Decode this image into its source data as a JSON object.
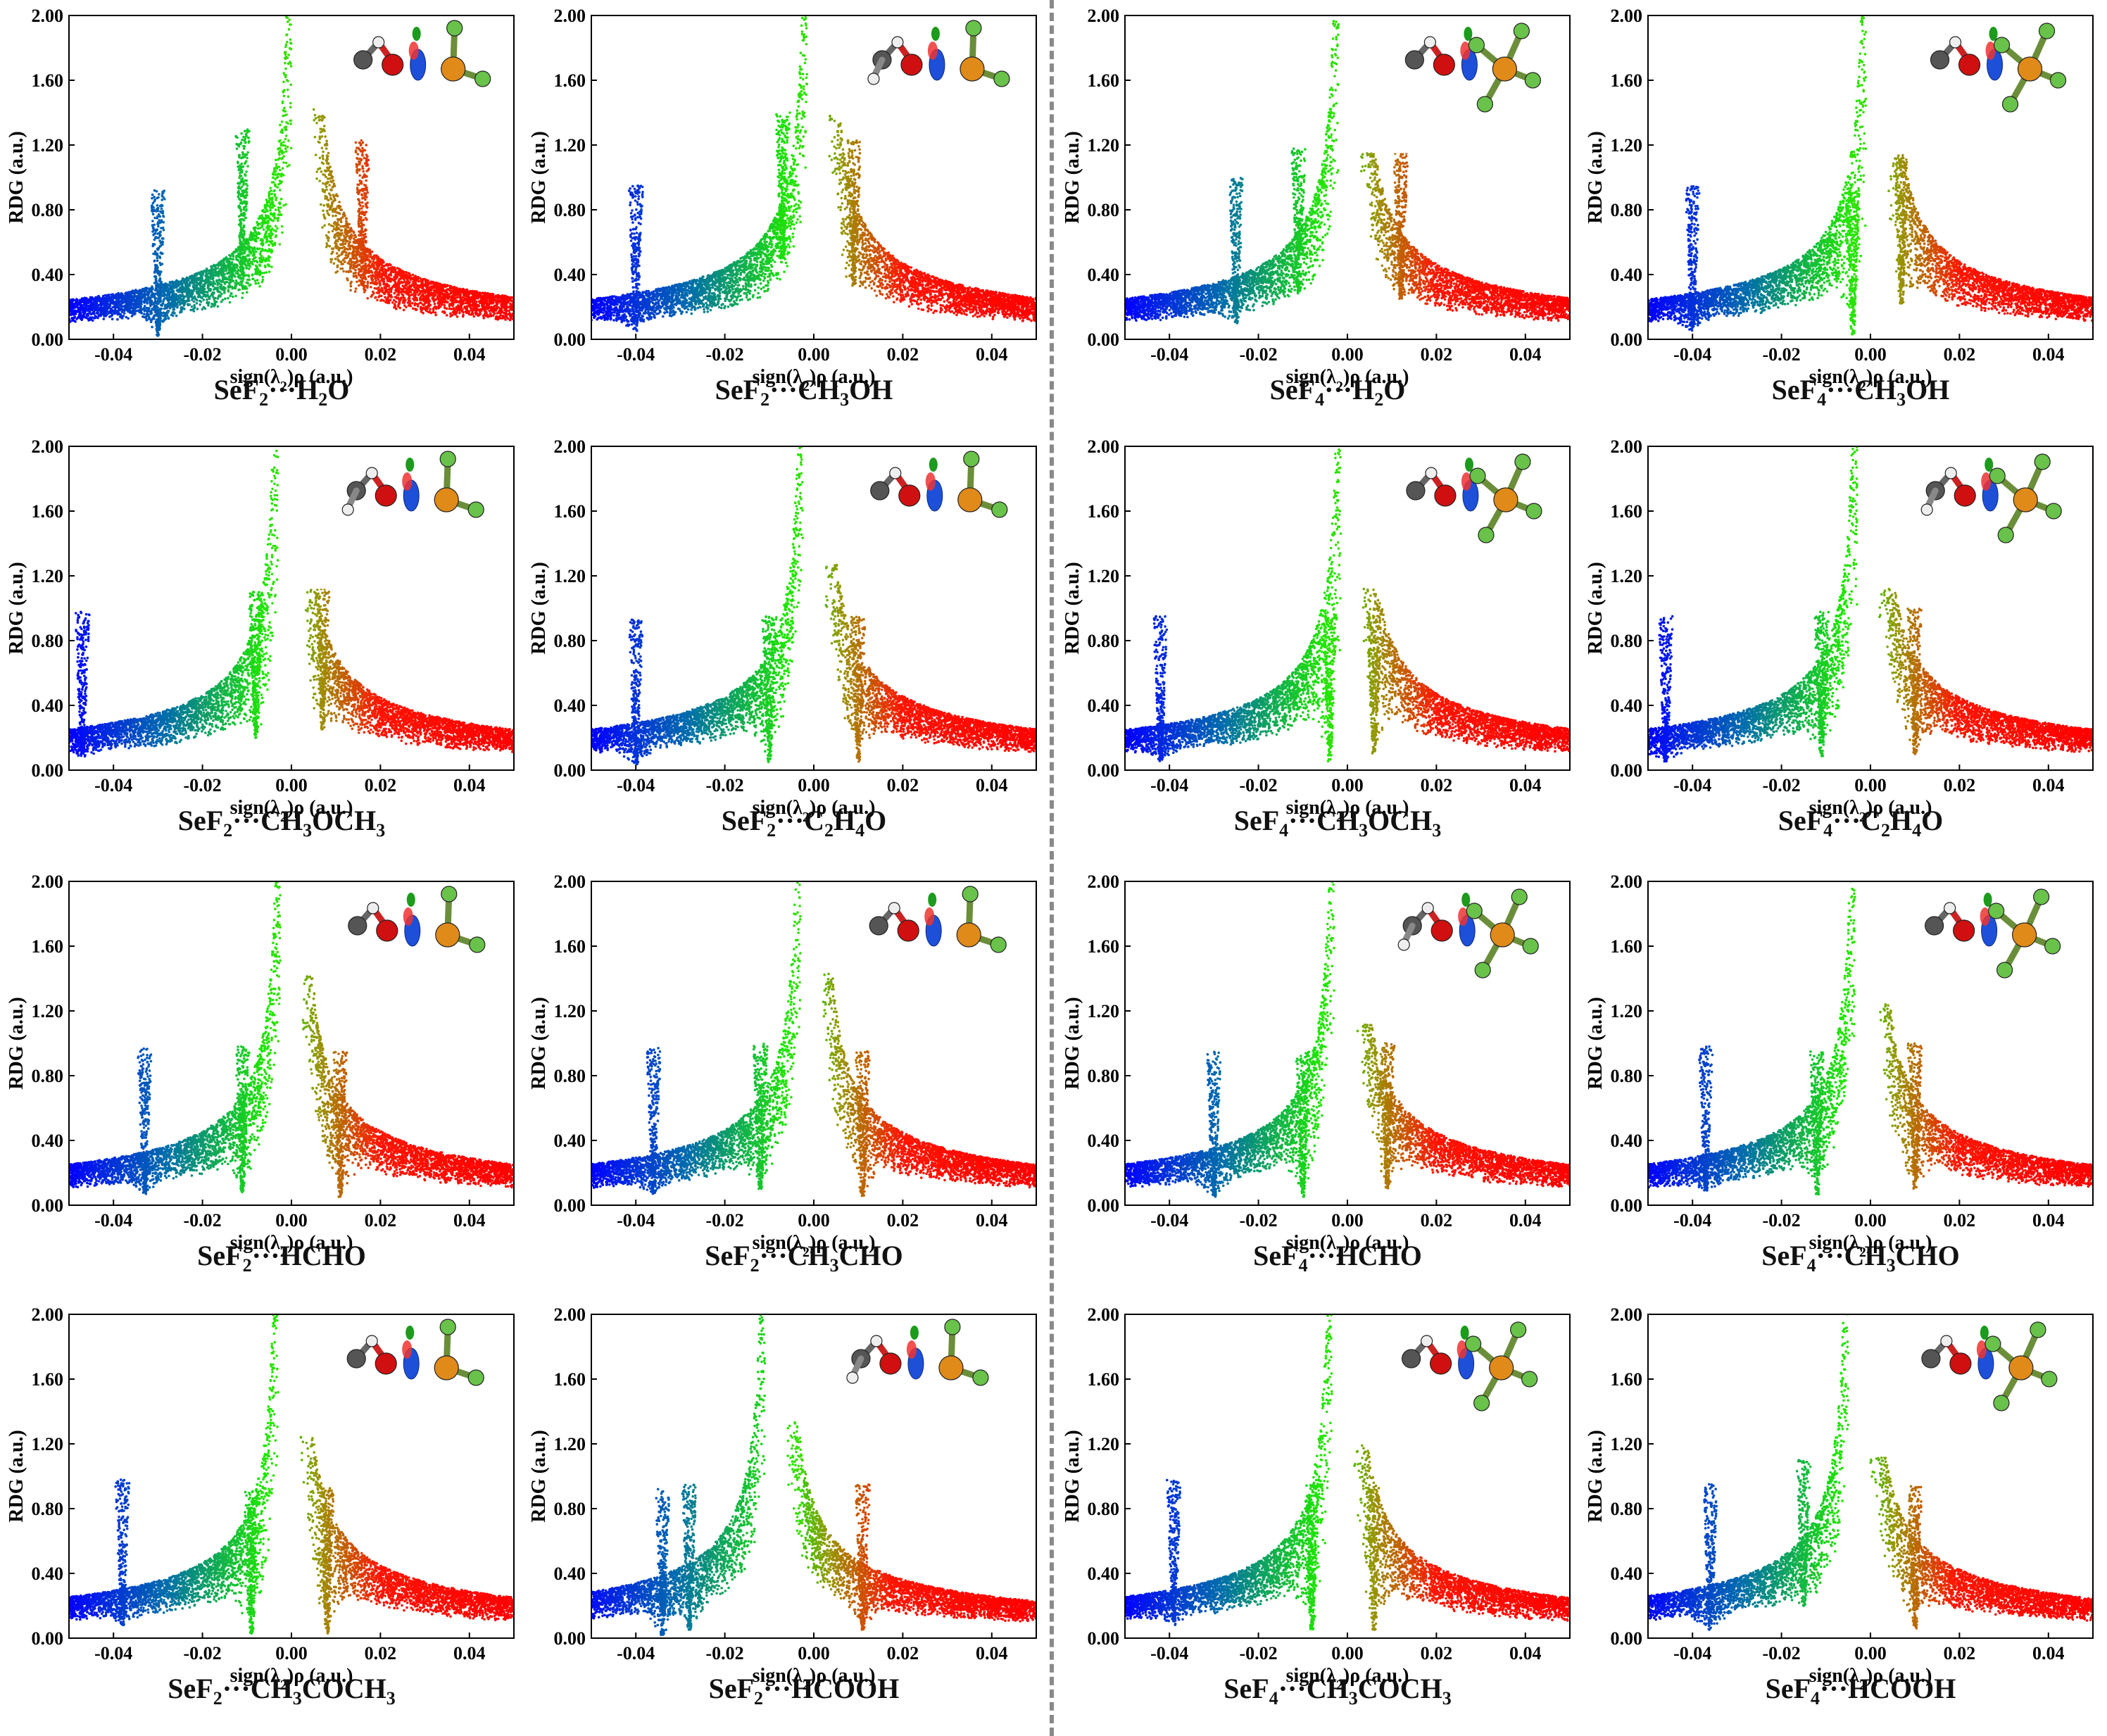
{
  "separator": "dashed-vertical",
  "palette": {
    "attractive": "#0000ff",
    "weak": "#00dd00",
    "repulsive": "#ff0000",
    "mid": "#b08000"
  },
  "chart_data": [
    {
      "type": "scatter",
      "group": "SeF2",
      "caption": [
        "SeF",
        "2",
        "···H",
        "2",
        "O"
      ],
      "xlabel": [
        "sign(λ",
        "2",
        ")ρ (a.u.)"
      ],
      "ylabel": "RDG (a.u.)",
      "xlim": [
        -0.05,
        0.05
      ],
      "ylim": [
        0,
        2.0
      ],
      "xticks": [
        "-0.04",
        "-0.02",
        "0.00",
        "0.02",
        "0.04"
      ],
      "yticks": [
        "0.00",
        "0.40",
        "0.80",
        "1.20",
        "1.60",
        "2.00"
      ],
      "spikes": [
        {
          "x": -0.03,
          "min": 0.02
        },
        {
          "x": -0.011,
          "min": 0.4
        },
        {
          "x": 0.016,
          "min": 0.33
        }
      ],
      "inset": {
        "rdg_cut": 1.42,
        "mol": "SeF2·H2O"
      }
    },
    {
      "type": "scatter",
      "group": "SeF2",
      "caption": [
        "SeF",
        "2",
        "···CH",
        "3",
        "OH"
      ],
      "xlabel": [
        "sign(λ",
        "2",
        ")ρ (a.u.)"
      ],
      "ylabel": "RDG (a.u.)",
      "xlim": [
        -0.05,
        0.05
      ],
      "ylim": [
        0,
        2.0
      ],
      "xticks": [
        "-0.04",
        "-0.02",
        "0.00",
        "0.02",
        "0.04"
      ],
      "yticks": [
        "0.00",
        "0.40",
        "0.80",
        "1.20",
        "1.60",
        "2.00"
      ],
      "spikes": [
        {
          "x": -0.04,
          "min": 0.05
        },
        {
          "x": -0.007,
          "min": 0.5
        },
        {
          "x": 0.009,
          "min": 0.33
        }
      ],
      "inset": {
        "rdg_cut": 1.38,
        "mol": "SeF2·CH3OH"
      }
    },
    {
      "type": "scatter",
      "group": "SeF4",
      "caption": [
        "SeF",
        "4",
        "···H",
        "2",
        "O"
      ],
      "xlabel": [
        "sign(λ",
        "2",
        ")ρ (a.u.)"
      ],
      "ylabel": "RDG (a.u.)",
      "xlim": [
        -0.05,
        0.05
      ],
      "ylim": [
        0,
        2.0
      ],
      "xticks": [
        "-0.04",
        "-0.02",
        "0.00",
        "0.02",
        "0.04"
      ],
      "yticks": [
        "0.00",
        "0.40",
        "0.80",
        "1.20",
        "1.60",
        "2.00"
      ],
      "spikes": [
        {
          "x": -0.025,
          "min": 0.1
        },
        {
          "x": -0.011,
          "min": 0.28
        },
        {
          "x": 0.012,
          "min": 0.25
        }
      ],
      "inset": {
        "rdg_cut": 1.15,
        "mol": "SeF4·H2O"
      }
    },
    {
      "type": "scatter",
      "group": "SeF4",
      "caption": [
        "SeF",
        "4",
        "···CH",
        "3",
        "OH"
      ],
      "xlabel": [
        "sign(λ",
        "2",
        ")ρ (a.u.)"
      ],
      "ylabel": "RDG (a.u.)",
      "xlim": [
        -0.05,
        0.05
      ],
      "ylim": [
        0,
        2.0
      ],
      "xticks": [
        "-0.04",
        "-0.02",
        "0.00",
        "0.02",
        "0.04"
      ],
      "yticks": [
        "0.00",
        "0.40",
        "0.80",
        "1.20",
        "1.60",
        "2.00"
      ],
      "spikes": [
        {
          "x": -0.04,
          "min": 0.05
        },
        {
          "x": -0.004,
          "min": 0.03
        },
        {
          "x": 0.007,
          "min": 0.22
        }
      ],
      "inset": {
        "rdg_cut": 1.15,
        "mol": "SeF4·CH3OH"
      }
    },
    {
      "type": "scatter",
      "group": "SeF2",
      "caption": [
        "SeF",
        "2",
        "···CH",
        "3",
        "OCH",
        "3"
      ],
      "xlabel": [
        "sign(λ",
        "2",
        ")ρ (a.u.)"
      ],
      "ylabel": "RDG (a.u.)",
      "xlim": [
        -0.05,
        0.05
      ],
      "ylim": [
        0,
        2.0
      ],
      "xticks": [
        "-0.04",
        "-0.02",
        "0.00",
        "0.02",
        "0.04"
      ],
      "yticks": [
        "0.00",
        "0.40",
        "0.80",
        "1.20",
        "1.60",
        "2.00"
      ],
      "spikes": [
        {
          "x": -0.047,
          "min": 0.08
        },
        {
          "x": -0.008,
          "min": 0.2
        },
        {
          "x": 0.007,
          "min": 0.25
        }
      ],
      "inset": {
        "rdg_cut": 1.12,
        "mol": "SeF2·CH3OCH3"
      }
    },
    {
      "type": "scatter",
      "group": "SeF2",
      "caption": [
        "SeF",
        "2",
        "···C",
        "2",
        "H",
        "4",
        "O"
      ],
      "xlabel": [
        "sign(λ",
        "2",
        ")ρ (a.u.)"
      ],
      "ylabel": "RDG (a.u.)",
      "xlim": [
        -0.05,
        0.05
      ],
      "ylim": [
        0,
        2.0
      ],
      "xticks": [
        "-0.04",
        "-0.02",
        "0.00",
        "0.02",
        "0.04"
      ],
      "yticks": [
        "0.00",
        "0.40",
        "0.80",
        "1.20",
        "1.60",
        "2.00"
      ],
      "spikes": [
        {
          "x": -0.04,
          "min": 0.03
        },
        {
          "x": -0.01,
          "min": 0.05
        },
        {
          "x": 0.01,
          "min": 0.05
        }
      ],
      "inset": {
        "rdg_cut": 1.28,
        "mol": "SeF2·C2H4O"
      }
    },
    {
      "type": "scatter",
      "group": "SeF4",
      "caption": [
        "SeF",
        "4",
        "···CH",
        "3",
        "OCH",
        "3"
      ],
      "xlabel": [
        "sign(λ",
        "2",
        ")ρ (a.u.)"
      ],
      "ylabel": "RDG (a.u.)",
      "xlim": [
        -0.05,
        0.05
      ],
      "ylim": [
        0,
        2.0
      ],
      "xticks": [
        "-0.04",
        "-0.02",
        "0.00",
        "0.02",
        "0.04"
      ],
      "yticks": [
        "0.00",
        "0.40",
        "0.80",
        "1.20",
        "1.60",
        "2.00"
      ],
      "spikes": [
        {
          "x": -0.042,
          "min": 0.05
        },
        {
          "x": -0.004,
          "min": 0.05
        },
        {
          "x": 0.006,
          "min": 0.1
        }
      ],
      "inset": {
        "rdg_cut": 1.12,
        "mol": "SeF4·CH3OCH3"
      }
    },
    {
      "type": "scatter",
      "group": "SeF4",
      "caption": [
        "SeF",
        "4",
        "···C",
        "2",
        "H",
        "4",
        "O"
      ],
      "xlabel": [
        "sign(λ",
        "2",
        ")ρ (a.u.)"
      ],
      "ylabel": "RDG (a.u.)",
      "xlim": [
        -0.05,
        0.05
      ],
      "ylim": [
        0,
        2.0
      ],
      "xticks": [
        "-0.04",
        "-0.02",
        "0.00",
        "0.02",
        "0.04"
      ],
      "yticks": [
        "0.00",
        "0.40",
        "0.80",
        "1.20",
        "1.60",
        "2.00"
      ],
      "spikes": [
        {
          "x": -0.046,
          "min": 0.05
        },
        {
          "x": -0.011,
          "min": 0.08
        },
        {
          "x": 0.01,
          "min": 0.1
        }
      ],
      "inset": {
        "rdg_cut": 1.12,
        "mol": "SeF4·C2H4O"
      }
    },
    {
      "type": "scatter",
      "group": "SeF2",
      "caption": [
        "SeF",
        "2",
        "···HCHO"
      ],
      "xlabel": [
        "sign(λ",
        "2",
        ")ρ (a.u.)"
      ],
      "ylabel": "RDG (a.u.)",
      "xlim": [
        -0.05,
        0.05
      ],
      "ylim": [
        0,
        2.0
      ],
      "xticks": [
        "-0.04",
        "-0.02",
        "0.00",
        "0.02",
        "0.04"
      ],
      "yticks": [
        "0.00",
        "0.40",
        "0.80",
        "1.20",
        "1.60",
        "2.00"
      ],
      "spikes": [
        {
          "x": -0.033,
          "min": 0.07
        },
        {
          "x": -0.011,
          "min": 0.08
        },
        {
          "x": 0.011,
          "min": 0.05
        }
      ],
      "inset": {
        "rdg_cut": 1.42,
        "mol": "SeF2·HCHO"
      }
    },
    {
      "type": "scatter",
      "group": "SeF2",
      "caption": [
        "SeF",
        "2",
        "···CH",
        "3",
        "CHO"
      ],
      "xlabel": [
        "sign(λ",
        "2",
        ")ρ (a.u.)"
      ],
      "ylabel": "RDG (a.u.)",
      "xlim": [
        -0.05,
        0.05
      ],
      "ylim": [
        0,
        2.0
      ],
      "xticks": [
        "-0.04",
        "-0.02",
        "0.00",
        "0.02",
        "0.04"
      ],
      "yticks": [
        "0.00",
        "0.40",
        "0.80",
        "1.20",
        "1.60",
        "2.00"
      ],
      "spikes": [
        {
          "x": -0.036,
          "min": 0.07
        },
        {
          "x": -0.012,
          "min": 0.1
        },
        {
          "x": 0.011,
          "min": 0.05
        }
      ],
      "inset": {
        "rdg_cut": 1.45,
        "mol": "SeF2·CH3CHO"
      }
    },
    {
      "type": "scatter",
      "group": "SeF4",
      "caption": [
        "SeF",
        "4",
        "···HCHO"
      ],
      "xlabel": [
        "sign(λ",
        "2",
        ")ρ (a.u.)"
      ],
      "ylabel": "RDG (a.u.)",
      "xlim": [
        -0.05,
        0.05
      ],
      "ylim": [
        0,
        2.0
      ],
      "xticks": [
        "-0.04",
        "-0.02",
        "0.00",
        "0.02",
        "0.04"
      ],
      "yticks": [
        "0.00",
        "0.40",
        "0.80",
        "1.20",
        "1.60",
        "2.00"
      ],
      "spikes": [
        {
          "x": -0.03,
          "min": 0.05
        },
        {
          "x": -0.01,
          "min": 0.05
        },
        {
          "x": 0.009,
          "min": 0.1
        }
      ],
      "inset": {
        "rdg_cut": 1.12,
        "mol": "SeF4·HCHO"
      }
    },
    {
      "type": "scatter",
      "group": "SeF4",
      "caption": [
        "SeF",
        "4",
        "···CH",
        "3",
        "CHO"
      ],
      "xlabel": [
        "sign(λ",
        "2",
        ")ρ (a.u.)"
      ],
      "ylabel": "RDG (a.u.)",
      "xlim": [
        -0.05,
        0.05
      ],
      "ylim": [
        0,
        2.0
      ],
      "xticks": [
        "-0.04",
        "-0.02",
        "0.00",
        "0.02",
        "0.04"
      ],
      "yticks": [
        "0.00",
        "0.40",
        "0.80",
        "1.20",
        "1.60",
        "2.00"
      ],
      "spikes": [
        {
          "x": -0.037,
          "min": 0.08
        },
        {
          "x": -0.012,
          "min": 0.05
        },
        {
          "x": 0.01,
          "min": 0.1
        }
      ],
      "inset": {
        "rdg_cut": 1.25,
        "mol": "SeF4·CH3CHO"
      }
    },
    {
      "type": "scatter",
      "group": "SeF2",
      "caption": [
        "SeF",
        "2",
        "···CH",
        "3",
        "COCH",
        "3"
      ],
      "xlabel": [
        "sign(λ",
        "2",
        ")ρ (a.u.)"
      ],
      "ylabel": "RDG (a.u.)",
      "xlim": [
        -0.05,
        0.05
      ],
      "ylim": [
        0,
        2.0
      ],
      "xticks": [
        "-0.04",
        "-0.02",
        "0.00",
        "0.02",
        "0.04"
      ],
      "yticks": [
        "0.00",
        "0.40",
        "0.80",
        "1.20",
        "1.60",
        "2.00"
      ],
      "spikes": [
        {
          "x": -0.038,
          "min": 0.08
        },
        {
          "x": -0.009,
          "min": 0.02
        },
        {
          "x": 0.008,
          "min": 0.03
        }
      ],
      "inset": {
        "rdg_cut": 1.25,
        "mol": "SeF2·CH3COCH3"
      }
    },
    {
      "type": "scatter",
      "group": "SeF2",
      "caption": [
        "SeF",
        "2",
        "···HCOOH"
      ],
      "xlabel": [
        "sign(λ",
        "2",
        ")ρ (a.u.)"
      ],
      "ylabel": "RDG (a.u.)",
      "xlim": [
        -0.05,
        0.05
      ],
      "ylim": [
        0,
        2.0
      ],
      "xticks": [
        "-0.04",
        "-0.02",
        "0.00",
        "0.02",
        "0.04"
      ],
      "yticks": [
        "0.00",
        "0.40",
        "0.80",
        "1.20",
        "1.60",
        "2.00"
      ],
      "spikes": [
        {
          "x": -0.034,
          "min": 0.02
        },
        {
          "x": -0.028,
          "min": 0.05
        },
        {
          "x": 0.011,
          "min": 0.05
        }
      ],
      "inset": {
        "rdg_cut": 1.35,
        "mol": "SeF2·HCOOH"
      }
    },
    {
      "type": "scatter",
      "group": "SeF4",
      "caption": [
        "SeF",
        "4",
        "···CH",
        "3",
        "COCH",
        "3"
      ],
      "xlabel": [
        "sign(λ",
        "2",
        ")ρ (a.u.)"
      ],
      "ylabel": "RDG (a.u.)",
      "xlim": [
        -0.05,
        0.05
      ],
      "ylim": [
        0,
        2.0
      ],
      "xticks": [
        "-0.04",
        "-0.02",
        "0.00",
        "0.02",
        "0.04"
      ],
      "yticks": [
        "0.00",
        "0.40",
        "0.80",
        "1.20",
        "1.60",
        "2.00"
      ],
      "spikes": [
        {
          "x": -0.039,
          "min": 0.08
        },
        {
          "x": -0.008,
          "min": 0.05
        },
        {
          "x": 0.006,
          "min": 0.05
        }
      ],
      "inset": {
        "rdg_cut": 1.2,
        "mol": "SeF4·CH3COCH3"
      }
    },
    {
      "type": "scatter",
      "group": "SeF4",
      "caption": [
        "SeF",
        "4",
        "···HCOOH"
      ],
      "xlabel": [
        "sign(λ",
        "2",
        ")ρ (a.u.)"
      ],
      "ylabel": "RDG (a.u.)",
      "xlim": [
        -0.05,
        0.05
      ],
      "ylim": [
        0,
        2.0
      ],
      "xticks": [
        "-0.04",
        "-0.02",
        "0.00",
        "0.02",
        "0.04"
      ],
      "yticks": [
        "0.00",
        "0.40",
        "0.80",
        "1.20",
        "1.60",
        "2.00"
      ],
      "spikes": [
        {
          "x": -0.036,
          "min": 0.05
        },
        {
          "x": -0.015,
          "min": 0.2
        },
        {
          "x": 0.01,
          "min": 0.05
        }
      ],
      "inset": {
        "rdg_cut": 1.12,
        "mol": "SeF4·HCOOH"
      }
    }
  ]
}
